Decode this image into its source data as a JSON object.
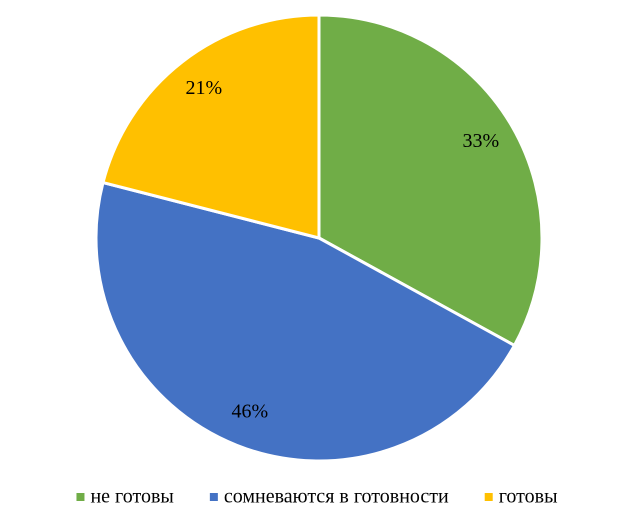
{
  "chart_data": {
    "type": "pie",
    "categories": [
      "не готовы",
      "сомневаются в готовности",
      "готовы"
    ],
    "values": [
      33,
      46,
      21
    ],
    "value_labels": [
      "33%",
      "46%",
      "21%"
    ],
    "colors": [
      "#70ad47",
      "#4472c4",
      "#ffc000"
    ],
    "legend": "bottom"
  }
}
